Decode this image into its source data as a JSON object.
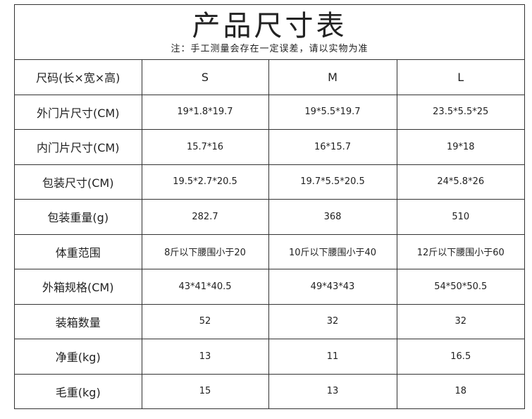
{
  "title": "产品尺寸表",
  "note": "注：手工测量会存在一定误差，请以实物为准",
  "table": {
    "headers": [
      "尺码(长×宽×高)",
      "S",
      "M",
      "L"
    ],
    "rows": [
      [
        "外门片尺寸(CM)",
        "19*1.8*19.7",
        "19*5.5*19.7",
        "23.5*5.5*25"
      ],
      [
        "内门片尺寸(CM)",
        "15.7*16",
        "16*15.7",
        "19*18"
      ],
      [
        "包装尺寸(CM)",
        "19.5*2.7*20.5",
        "19.7*5.5*20.5",
        "24*5.8*26"
      ],
      [
        "包装重量(g)",
        "282.7",
        "368",
        "510"
      ],
      [
        "体重范围",
        "8斤以下腰围小于20",
        "10斤以下腰围小于40",
        "12斤以下腰围小于60"
      ],
      [
        "外箱规格(CM)",
        "43*41*40.5",
        "49*43*43",
        "54*50*50.5"
      ],
      [
        "装箱数量",
        "52",
        "32",
        "32"
      ],
      [
        "净重(kg)",
        "13",
        "11",
        "16.5"
      ],
      [
        "毛重(kg)",
        "15",
        "13",
        "18"
      ]
    ]
  }
}
